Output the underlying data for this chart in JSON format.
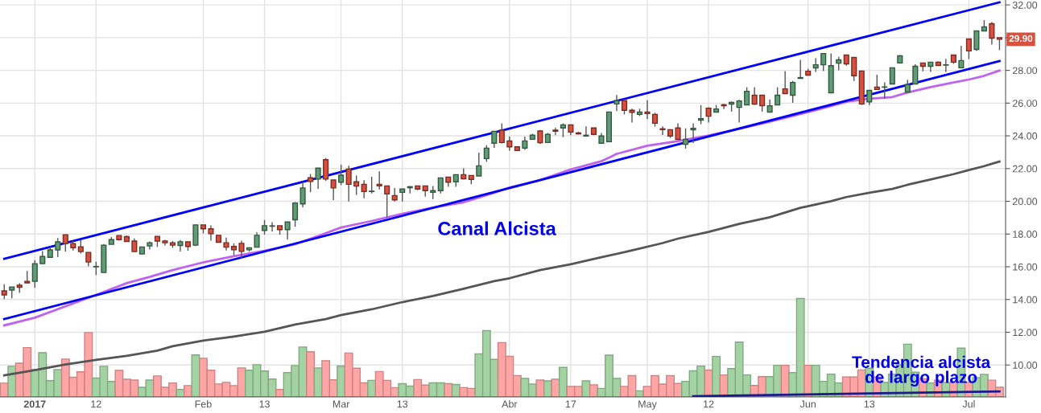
{
  "chart_data": {
    "type": "candlestick",
    "categories": [
      null,
      null,
      null,
      null,
      "2017",
      null,
      null,
      null,
      null,
      null,
      null,
      null,
      "12",
      null,
      null,
      null,
      null,
      null,
      null,
      null,
      null,
      null,
      null,
      null,
      null,
      null,
      "Feb",
      null,
      null,
      null,
      null,
      null,
      null,
      null,
      "13",
      null,
      null,
      null,
      null,
      null,
      null,
      null,
      null,
      null,
      "Mar",
      null,
      null,
      null,
      null,
      null,
      null,
      null,
      "13",
      null,
      null,
      null,
      null,
      null,
      null,
      null,
      null,
      null,
      null,
      null,
      null,
      null,
      "Abr",
      null,
      null,
      null,
      null,
      null,
      null,
      null,
      "17",
      null,
      null,
      null,
      null,
      null,
      null,
      null,
      null,
      null,
      "May",
      null,
      null,
      null,
      null,
      null,
      null,
      null,
      "12",
      null,
      null,
      null,
      null,
      null,
      null,
      null,
      null,
      null,
      null,
      null,
      null,
      "Jun",
      null,
      null,
      null,
      null,
      null,
      null,
      null,
      "13",
      null,
      null,
      null,
      null,
      null,
      null,
      null,
      null,
      null,
      null,
      null,
      null,
      "Jul",
      null,
      null,
      null,
      null
    ],
    "ylim": [
      8.05,
      32.3
    ],
    "yticks": [
      {
        "value": 10,
        "label": "10.00"
      },
      {
        "value": 12,
        "label": "12.00"
      },
      {
        "value": 14,
        "label": "14.00"
      },
      {
        "value": 16,
        "label": "16.00"
      },
      {
        "value": 18,
        "label": "18.00"
      },
      {
        "value": 20,
        "label": "20.00"
      },
      {
        "value": 22,
        "label": "22.00"
      },
      {
        "value": 24,
        "label": "24.00"
      },
      {
        "value": 26,
        "label": "26.00"
      },
      {
        "value": 28,
        "label": "28.00"
      },
      {
        "value": 30,
        "label": null
      },
      {
        "value": 32,
        "label": "32.00"
      }
    ],
    "grid": true,
    "series": [
      {
        "type": "bar",
        "colors": [
          "#ffa5a5",
          "#a3d3a3",
          "#ffa5a5",
          "#ffa5a5",
          "#a3d3a3",
          "#a3d3a3",
          "#a3d3a3",
          "#a3d3a3",
          "#ffa5a5",
          "#ffa5a5",
          "#ffa5a5",
          "#ffa5a5",
          "#a3d3a3",
          "#a3d3a3",
          "#a3d3a3",
          "#ffa5a5",
          "#ffa5a5",
          "#ffa5a5",
          "#a3d3a3",
          "#a3d3a3",
          "#ffa5a5",
          "#ffa5a5",
          "#ffa5a5",
          "#a3d3a3",
          "#ffa5a5",
          "#a3d3a3",
          "#ffa5a5",
          "#ffa5a5",
          "#ffa5a5",
          "#ffa5a5",
          "#ffa5a5",
          "#ffa5a5",
          "#a3d3a3",
          "#a3d3a3",
          "#a3d3a3",
          "#a3d3a3",
          "#ffa5a5",
          "#a3d3a3",
          "#a3d3a3",
          "#a3d3a3",
          "#ffa5a5",
          "#a3d3a3",
          "#ffa5a5",
          "#ffa5a5",
          "#a3d3a3",
          "#ffa5a5",
          "#ffa5a5",
          "#ffa5a5",
          "#a3d3a3",
          "#ffa5a5",
          "#ffa5a5",
          "#ffa5a5",
          "#a3d3a3",
          "#a3d3a3",
          "#ffa5a5",
          "#ffa5a5",
          "#a3d3a3",
          "#a3d3a3",
          "#ffa5a5",
          "#a3d3a3",
          "#ffa5a5",
          "#ffa5a5",
          "#a3d3a3",
          "#a3d3a3",
          "#a3d3a3",
          "#ffa5a5",
          "#ffa5a5",
          "#ffa5a5",
          "#a3d3a3",
          "#a3d3a3",
          "#ffa5a5",
          "#a3d3a3",
          "#ffa5a5",
          "#a3d3a3",
          "#ffa5a5",
          "#ffa5a5",
          "#a3d3a3",
          "#ffa5a5",
          "#a3d3a3",
          "#a3d3a3",
          "#a3d3a3",
          "#ffa5a5",
          "#ffa5a5",
          "#a3d3a3",
          "#ffa5a5",
          "#ffa5a5",
          "#ffa5a5",
          "#ffa5a5",
          "#ffa5a5",
          "#a3d3a3",
          "#a3d3a3",
          "#a3d3a3",
          "#ffa5a5",
          "#a3d3a3",
          "#ffa5a5",
          "#a3d3a3",
          "#a3d3a3",
          "#a3d3a3",
          "#ffa5a5",
          "#ffa5a5",
          "#a3d3a3",
          "#a3d3a3",
          "#ffa5a5",
          "#a3d3a3",
          "#a3d3a3",
          "#ffa5a5",
          "#a3d3a3",
          "#a3d3a3",
          "#a3d3a3",
          "#a3d3a3",
          "#ffa5a5",
          "#ffa5a5",
          "#ffa5a5",
          "#a3d3a3",
          "#ffa5a5",
          "#a3d3a3",
          "#a3d3a3",
          "#a3d3a3",
          "#a3d3a3",
          "#a3d3a3",
          "#ffa5a5",
          "#a3d3a3",
          "#ffa5a5",
          "#a3d3a3",
          "#ffa5a5",
          "#a3d3a3",
          "#ffa5a5",
          "#a3d3a3",
          "#a3d3a3",
          "#ffa5a5",
          "#ffa5a5"
        ],
        "values": [
          8.89,
          9.92,
          10.11,
          11.06,
          9.72,
          10.75,
          9.04,
          9.72,
          10.36,
          9.25,
          9.58,
          11.98,
          9.2,
          9.92,
          8.99,
          9.67,
          9.13,
          9.08,
          8.64,
          9.08,
          9.33,
          8.64,
          8.9,
          8.51,
          8.74,
          10.61,
          10.41,
          9.68,
          8.84,
          8.94,
          8.74,
          9.82,
          9.68,
          10.02,
          9.63,
          9.14,
          8.5,
          9.53,
          9.97,
          11.1,
          10.81,
          9.82,
          10.26,
          9.09,
          9.94,
          10.73,
          9.8,
          8.91,
          9.06,
          9.6,
          9.06,
          8.62,
          8.86,
          8.71,
          9.11,
          8.77,
          8.91,
          8.91,
          8.86,
          8.81,
          8.62,
          8.57,
          10.68,
          12.1,
          10.34,
          11.37,
          10.53,
          9.35,
          9.18,
          8.83,
          9.08,
          9.03,
          9.13,
          9.85,
          8.69,
          8.69,
          9.03,
          8.79,
          8.57,
          10.6,
          9.18,
          8.69,
          9.35,
          8.42,
          8.69,
          9.35,
          8.83,
          9.35,
          8.87,
          9.0,
          9.64,
          9.93,
          9.69,
          10.52,
          9.39,
          9.78,
          11.4,
          9.39,
          8.75,
          9.29,
          9.29,
          9.98,
          9.98,
          9.54,
          14.06,
          9.98,
          9.98,
          9.0,
          9.44,
          8.9,
          9.26,
          9.26,
          9.7,
          9.8,
          9.26,
          8.93,
          9.44,
          10.01,
          11.27,
          9.56,
          9.16,
          8.9,
          9.07,
          8.93,
          8.93,
          11.03,
          8.93,
          9.23,
          9.43,
          9.07,
          8.64
        ]
      },
      {
        "type": "line",
        "color": "#555555",
        "values": [
          9.37,
          null,
          null,
          null,
          9.69,
          null,
          null,
          null,
          10.03,
          null,
          null,
          null,
          10.31,
          null,
          null,
          null,
          10.56,
          null,
          null,
          null,
          10.88,
          null,
          11.15,
          null,
          null,
          null,
          11.49,
          null,
          null,
          null,
          11.74,
          null,
          null,
          null,
          12.03,
          null,
          null,
          null,
          12.47,
          null,
          null,
          null,
          12.8,
          null,
          13.05,
          null,
          null,
          null,
          13.4,
          null,
          null,
          null,
          13.84,
          null,
          null,
          null,
          14.22,
          null,
          null,
          null,
          14.66,
          null,
          null,
          null,
          15.12,
          null,
          15.3,
          null,
          null,
          null,
          15.8,
          null,
          null,
          null,
          16.15,
          null,
          null,
          null,
          16.58,
          null,
          null,
          null,
          17.0,
          null,
          null,
          null,
          17.45,
          null,
          17.72,
          null,
          null,
          null,
          18.13,
          null,
          null,
          null,
          18.62,
          null,
          null,
          null,
          19.03,
          null,
          null,
          null,
          19.6,
          null,
          null,
          null,
          20.01,
          null,
          20.26,
          null,
          null,
          20.52,
          null,
          null,
          20.76,
          null,
          21.01,
          null,
          null,
          21.33,
          null,
          null,
          21.66,
          null,
          21.91,
          null,
          22.15,
          null,
          22.43
        ]
      },
      {
        "type": "line",
        "color": "#c061f0",
        "values": [
          12.42,
          null,
          null,
          null,
          12.89,
          null,
          null,
          null,
          13.58,
          null,
          null,
          null,
          14.28,
          null,
          null,
          null,
          15.0,
          null,
          null,
          15.38,
          null,
          null,
          15.8,
          null,
          null,
          null,
          16.27,
          null,
          null,
          null,
          16.65,
          null,
          null,
          null,
          16.98,
          null,
          null,
          null,
          17.38,
          null,
          null,
          17.88,
          null,
          null,
          18.4,
          null,
          null,
          null,
          18.8,
          null,
          null,
          null,
          19.24,
          null,
          null,
          null,
          19.62,
          null,
          null,
          null,
          19.94,
          null,
          null,
          null,
          20.52,
          null,
          20.85,
          null,
          null,
          null,
          21.3,
          null,
          null,
          null,
          21.95,
          null,
          null,
          null,
          22.45,
          null,
          22.9,
          null,
          null,
          null,
          23.4,
          null,
          null,
          null,
          23.68,
          null,
          null,
          null,
          24.02,
          null,
          null,
          null,
          24.43,
          null,
          null,
          null,
          24.87,
          null,
          null,
          null,
          25.33,
          null,
          null,
          null,
          25.82,
          null,
          26.08,
          null,
          null,
          26.27,
          null,
          null,
          26.37,
          null,
          26.65,
          null,
          null,
          26.98,
          null,
          null,
          27.26,
          null,
          27.44,
          null,
          27.67,
          null,
          27.99
        ]
      },
      {
        "type": "line",
        "color": "#0000ff",
        "values": [
          16.49,
          null,
          null,
          null,
          null,
          null,
          null,
          null,
          null,
          null,
          null,
          null,
          null,
          null,
          null,
          null,
          null,
          null,
          null,
          null,
          null,
          null,
          null,
          null,
          null,
          null,
          null,
          null,
          null,
          null,
          null,
          null,
          null,
          null,
          null,
          null,
          null,
          null,
          null,
          null,
          null,
          null,
          null,
          null,
          null,
          null,
          null,
          null,
          null,
          null,
          null,
          null,
          null,
          null,
          null,
          null,
          null,
          null,
          null,
          null,
          null,
          null,
          null,
          null,
          null,
          null,
          null,
          null,
          null,
          null,
          null,
          null,
          null,
          null,
          null,
          null,
          null,
          null,
          null,
          null,
          null,
          null,
          null,
          null,
          null,
          null,
          null,
          null,
          null,
          null,
          null,
          null,
          null,
          null,
          null,
          null,
          null,
          null,
          null,
          null,
          null,
          null,
          null,
          null,
          null,
          null,
          null,
          null,
          null,
          null,
          null,
          null,
          null,
          null,
          null,
          null,
          null,
          null,
          null,
          null,
          null,
          null,
          null,
          null,
          null,
          null,
          null,
          null,
          null,
          null,
          32.16
        ]
      },
      {
        "type": "line",
        "color": "#0000ff",
        "values": [
          12.81,
          null,
          null,
          null,
          null,
          null,
          null,
          null,
          null,
          null,
          null,
          null,
          null,
          null,
          null,
          null,
          null,
          null,
          null,
          null,
          null,
          null,
          null,
          null,
          null,
          null,
          null,
          null,
          null,
          null,
          null,
          null,
          null,
          null,
          null,
          null,
          null,
          null,
          null,
          null,
          null,
          null,
          null,
          null,
          null,
          null,
          null,
          null,
          null,
          null,
          null,
          null,
          null,
          null,
          null,
          null,
          null,
          null,
          null,
          null,
          null,
          null,
          null,
          null,
          null,
          null,
          null,
          null,
          null,
          null,
          null,
          null,
          null,
          null,
          null,
          null,
          null,
          null,
          null,
          null,
          null,
          null,
          null,
          null,
          null,
          null,
          null,
          null,
          null,
          null,
          null,
          null,
          null,
          null,
          null,
          null,
          null,
          null,
          null,
          null,
          null,
          null,
          null,
          null,
          null,
          null,
          null,
          null,
          null,
          null,
          null,
          null,
          null,
          null,
          null,
          null,
          null,
          null,
          null,
          null,
          null,
          null,
          null,
          null,
          null,
          null,
          null,
          null,
          null,
          null,
          28.57
        ]
      },
      {
        "type": "line",
        "color": "#1a1a8c",
        "values": [
          null,
          null,
          null,
          null,
          null,
          null,
          null,
          null,
          null,
          null,
          null,
          null,
          null,
          null,
          null,
          null,
          null,
          null,
          null,
          null,
          null,
          null,
          null,
          null,
          null,
          null,
          null,
          null,
          null,
          null,
          null,
          null,
          null,
          null,
          null,
          null,
          null,
          null,
          null,
          null,
          null,
          null,
          null,
          null,
          null,
          null,
          null,
          null,
          null,
          null,
          null,
          null,
          null,
          null,
          null,
          null,
          null,
          null,
          null,
          null,
          null,
          null,
          null,
          null,
          null,
          null,
          null,
          null,
          null,
          null,
          null,
          null,
          null,
          null,
          null,
          null,
          null,
          null,
          null,
          null,
          null,
          null,
          null,
          null,
          null,
          null,
          null,
          null,
          null,
          null,
          8.09,
          null,
          null,
          null,
          null,
          null,
          null,
          null,
          null,
          null,
          null,
          null,
          null,
          null,
          null,
          null,
          null,
          null,
          null,
          null,
          null,
          null,
          null,
          null,
          null,
          null,
          null,
          null,
          null,
          null,
          null,
          null,
          null,
          null,
          null,
          null,
          null,
          null,
          null,
          null,
          8.38
        ]
      },
      {
        "colors": [
          "#d9503f",
          "#5f9e75",
          "#d9503f",
          "#d9503f",
          "#5f9e75",
          "#5f9e75",
          "#5f9e75",
          "#5f9e75",
          "#d9503f",
          "#d9503f",
          "#d9503f",
          "#d9503f",
          "#5f9e75",
          "#5f9e75",
          "#5f9e75",
          "#d9503f",
          "#d9503f",
          "#d9503f",
          "#5f9e75",
          "#5f9e75",
          "#d9503f",
          "#d9503f",
          "#d9503f",
          "#5f9e75",
          "#d9503f",
          "#5f9e75",
          "#d9503f",
          "#d9503f",
          "#d9503f",
          "#d9503f",
          "#d9503f",
          "#d9503f",
          "#5f9e75",
          "#5f9e75",
          "#5f9e75",
          "#5f9e75",
          "#d9503f",
          "#5f9e75",
          "#5f9e75",
          "#5f9e75",
          "#d9503f",
          "#5f9e75",
          "#d9503f",
          "#d9503f",
          "#5f9e75",
          "#d9503f",
          "#d9503f",
          "#d9503f",
          "#5f9e75",
          "#d9503f",
          "#d9503f",
          "#d9503f",
          "#5f9e75",
          "#5f9e75",
          "#d9503f",
          "#d9503f",
          "#5f9e75",
          "#5f9e75",
          "#d9503f",
          "#5f9e75",
          "#d9503f",
          "#d9503f",
          "#5f9e75",
          "#5f9e75",
          "#5f9e75",
          "#d9503f",
          "#d9503f",
          "#d9503f",
          "#5f9e75",
          "#5f9e75",
          "#d9503f",
          "#5f9e75",
          "#d9503f",
          "#5f9e75",
          "#d9503f",
          "#d9503f",
          "#5f9e75",
          "#d9503f",
          "#5f9e75",
          "#5f9e75",
          "#5f9e75",
          "#d9503f",
          "#d9503f",
          "#5f9e75",
          "#d9503f",
          "#d9503f",
          "#d9503f",
          "#d9503f",
          "#d9503f",
          "#5f9e75",
          "#5f9e75",
          "#5f9e75",
          "#d9503f",
          "#5f9e75",
          "#d9503f",
          "#5f9e75",
          "#5f9e75",
          "#5f9e75",
          "#d9503f",
          "#d9503f",
          "#5f9e75",
          "#5f9e75",
          "#d9503f",
          "#5f9e75",
          "#5f9e75",
          "#d9503f",
          "#5f9e75",
          "#5f9e75",
          "#5f9e75",
          "#5f9e75",
          "#d9503f",
          "#d9503f",
          "#d9503f",
          "#5f9e75",
          "#d9503f",
          "#5f9e75",
          "#5f9e75",
          "#5f9e75",
          "#5f9e75",
          "#5f9e75",
          "#d9503f",
          "#5f9e75",
          "#d9503f",
          "#5f9e75",
          "#d9503f",
          "#5f9e75",
          "#d9503f",
          "#5f9e75",
          "#5f9e75",
          "#d9503f",
          "#d9503f"
        ],
        "ohlc": [
          [
            14.53,
            14.93,
            14.02,
            14.28
          ],
          [
            14.58,
            14.77,
            14.07,
            14.77
          ],
          [
            14.87,
            15.0,
            14.41,
            14.75
          ],
          [
            15.11,
            15.74,
            15.0,
            15.02
          ],
          [
            15.11,
            16.41,
            14.71,
            16.19
          ],
          [
            16.19,
            16.96,
            16.19,
            16.63
          ],
          [
            16.58,
            17.22,
            16.54,
            17.03
          ],
          [
            17.03,
            17.76,
            16.6,
            17.52
          ],
          [
            17.96,
            17.96,
            16.93,
            17.42
          ],
          [
            17.42,
            17.58,
            17.0,
            17.17
          ],
          [
            17.22,
            17.63,
            16.81,
            16.93
          ],
          [
            16.88,
            16.88,
            16.03,
            16.29
          ],
          [
            16.0,
            16.31,
            15.49,
            16.01
          ],
          [
            15.65,
            17.39,
            15.65,
            17.32
          ],
          [
            17.37,
            17.81,
            17.37,
            17.66
          ],
          [
            17.91,
            17.91,
            17.61,
            17.66
          ],
          [
            17.84,
            17.91,
            17.55,
            17.55
          ],
          [
            17.57,
            17.73,
            16.93,
            16.93
          ],
          [
            16.78,
            17.21,
            16.78,
            17.21
          ],
          [
            17.27,
            17.55,
            17.06,
            17.47
          ],
          [
            17.86,
            17.86,
            17.21,
            17.57
          ],
          [
            17.58,
            17.65,
            17.3,
            17.47
          ],
          [
            17.47,
            17.57,
            17.16,
            17.32
          ],
          [
            17.3,
            17.63,
            16.93,
            17.53
          ],
          [
            17.52,
            17.52,
            16.98,
            17.24
          ],
          [
            17.32,
            18.56,
            17.27,
            18.56
          ],
          [
            18.56,
            18.56,
            18.04,
            18.32
          ],
          [
            18.32,
            18.53,
            17.6,
            18.02
          ],
          [
            17.92,
            17.92,
            17.5,
            17.5
          ],
          [
            17.47,
            17.78,
            16.99,
            17.2
          ],
          [
            17.24,
            17.43,
            16.7,
            17.04
          ],
          [
            17.43,
            17.6,
            16.48,
            16.94
          ],
          [
            17.04,
            17.19,
            16.93,
            17.16
          ],
          [
            17.2,
            18.1,
            17.2,
            17.92
          ],
          [
            18.22,
            18.86,
            17.97,
            18.51
          ],
          [
            18.48,
            18.73,
            18.15,
            18.5
          ],
          [
            18.51,
            18.51,
            17.97,
            18.27
          ],
          [
            18.27,
            18.74,
            17.66,
            18.74
          ],
          [
            18.87,
            19.95,
            18.45,
            19.9
          ],
          [
            19.84,
            21.18,
            19.63,
            20.82
          ],
          [
            21.44,
            21.67,
            20.56,
            21.21
          ],
          [
            21.36,
            22.03,
            20.76,
            22.03
          ],
          [
            22.54,
            22.65,
            21.25,
            21.36
          ],
          [
            21.3,
            21.3,
            20.07,
            20.82
          ],
          [
            21.17,
            22.24,
            20.99,
            21.6
          ],
          [
            21.97,
            22.17,
            19.99,
            21.04
          ],
          [
            21.19,
            21.58,
            20.39,
            20.93
          ],
          [
            21.04,
            21.29,
            20.19,
            20.6
          ],
          [
            20.6,
            21.5,
            20.48,
            20.61
          ],
          [
            21.04,
            21.83,
            20.73,
            20.94
          ],
          [
            20.94,
            20.94,
            19.01,
            20.45
          ],
          [
            20.35,
            20.81,
            19.99,
            20.09
          ],
          [
            20.55,
            20.75,
            19.99,
            20.75
          ],
          [
            20.83,
            20.93,
            20.48,
            20.89
          ],
          [
            20.94,
            20.94,
            20.68,
            20.75
          ],
          [
            20.94,
            20.94,
            20.29,
            20.65
          ],
          [
            20.55,
            20.94,
            20.14,
            20.65
          ],
          [
            20.65,
            21.43,
            20.48,
            21.43
          ],
          [
            21.48,
            21.48,
            20.89,
            21.17
          ],
          [
            21.19,
            21.63,
            20.89,
            21.63
          ],
          [
            21.63,
            22.02,
            21.34,
            21.38
          ],
          [
            21.58,
            21.58,
            21.04,
            21.34
          ],
          [
            21.55,
            22.97,
            21.55,
            22.17
          ],
          [
            22.61,
            23.43,
            22.42,
            23.25
          ],
          [
            23.55,
            24.28,
            23.27,
            24.28
          ],
          [
            24.35,
            24.76,
            23.53,
            23.59
          ],
          [
            23.69,
            23.95,
            23.1,
            23.33
          ],
          [
            23.33,
            23.33,
            23.1,
            23.1
          ],
          [
            23.25,
            23.95,
            23.15,
            23.69
          ],
          [
            23.79,
            24.13,
            23.79,
            24.04
          ],
          [
            24.3,
            24.36,
            23.5,
            23.58
          ],
          [
            23.59,
            24.18,
            23.59,
            24.09
          ],
          [
            24.35,
            24.49,
            24.04,
            24.28
          ],
          [
            24.48,
            24.76,
            23.92,
            24.67
          ],
          [
            24.67,
            24.67,
            24.04,
            24.23
          ],
          [
            24.18,
            24.25,
            24.09,
            24.12
          ],
          [
            23.99,
            24.58,
            23.99,
            24.04
          ],
          [
            24.48,
            24.48,
            24.04,
            24.09
          ],
          [
            23.55,
            24.18,
            23.55,
            23.99
          ],
          [
            23.64,
            25.46,
            23.64,
            25.46
          ],
          [
            25.95,
            26.49,
            25.51,
            26.15
          ],
          [
            26.15,
            26.15,
            25.31,
            25.56
          ],
          [
            25.56,
            25.66,
            24.81,
            25.44
          ],
          [
            25.31,
            25.66,
            25.21,
            25.46
          ],
          [
            25.46,
            26.18,
            25.02,
            25.36
          ],
          [
            25.31,
            25.41,
            24.56,
            24.77
          ],
          [
            24.43,
            24.58,
            24.05,
            24.38
          ],
          [
            24.38,
            24.38,
            23.87,
            23.99
          ],
          [
            24.48,
            24.77,
            23.78,
            23.78
          ],
          [
            23.48,
            24.46,
            23.22,
            23.78
          ],
          [
            24.37,
            24.76,
            23.56,
            24.46
          ],
          [
            24.96,
            25.87,
            24.71,
            25.05
          ],
          [
            25.69,
            25.74,
            24.81,
            25.2
          ],
          [
            25.45,
            25.89,
            25.45,
            25.64
          ],
          [
            25.9,
            25.95,
            25.64,
            25.84
          ],
          [
            25.94,
            26.1,
            25.48,
            26.04
          ],
          [
            25.74,
            26.2,
            24.81,
            26.13
          ],
          [
            25.89,
            26.97,
            25.89,
            26.72
          ],
          [
            26.48,
            26.97,
            25.89,
            25.94
          ],
          [
            26.48,
            26.48,
            25.48,
            25.84
          ],
          [
            25.45,
            26.23,
            25.45,
            25.84
          ],
          [
            25.89,
            26.97,
            25.89,
            26.48
          ],
          [
            26.87,
            27.95,
            26.58,
            26.58
          ],
          [
            26.48,
            27.36,
            26.02,
            27.26
          ],
          [
            27.51,
            28.64,
            27.51,
            27.56
          ],
          [
            27.95,
            28.1,
            27.71,
            27.71
          ],
          [
            28.15,
            28.74,
            27.9,
            28.34
          ],
          [
            28.34,
            29.03,
            27.95,
            29.03
          ],
          [
            26.63,
            29.03,
            26.63,
            28.29
          ],
          [
            28.44,
            28.83,
            28.0,
            28.64
          ],
          [
            28.94,
            28.94,
            28.29,
            28.4
          ],
          [
            28.79,
            28.79,
            27.35,
            27.67
          ],
          [
            27.96,
            27.96,
            25.88,
            25.95
          ],
          [
            26.08,
            26.78,
            25.88,
            26.78
          ],
          [
            26.98,
            27.73,
            26.83,
            26.83
          ],
          [
            26.97,
            27.27,
            26.27,
            26.98
          ],
          [
            27.17,
            28.16,
            27.17,
            28.16
          ],
          [
            28.45,
            28.94,
            28.45,
            28.89
          ],
          [
            26.68,
            27.42,
            26.68,
            27.13
          ],
          [
            27.17,
            28.37,
            27.17,
            28.25
          ],
          [
            28.45,
            28.45,
            27.94,
            28.25
          ],
          [
            28.25,
            28.5,
            27.91,
            28.5
          ],
          [
            28.5,
            28.55,
            28.3,
            28.3
          ],
          [
            28.32,
            28.7,
            27.91,
            28.34
          ],
          [
            28.94,
            28.94,
            28.4,
            28.5
          ],
          [
            28.16,
            29.5,
            28.16,
            28.6
          ],
          [
            29.92,
            29.92,
            28.7,
            29.19
          ],
          [
            29.28,
            30.41,
            29.19,
            30.41
          ],
          [
            30.41,
            31.07,
            30.41,
            30.66
          ],
          [
            30.85,
            30.95,
            29.58,
            29.97
          ],
          [
            30.0,
            30.0,
            29.24,
            29.9
          ]
        ]
      }
    ],
    "annotations": [
      "Canal Alcista",
      "Tendencia alcista\nde largo plazo",
      {
        "text": "29.90",
        "y": 29.9
      }
    ]
  }
}
